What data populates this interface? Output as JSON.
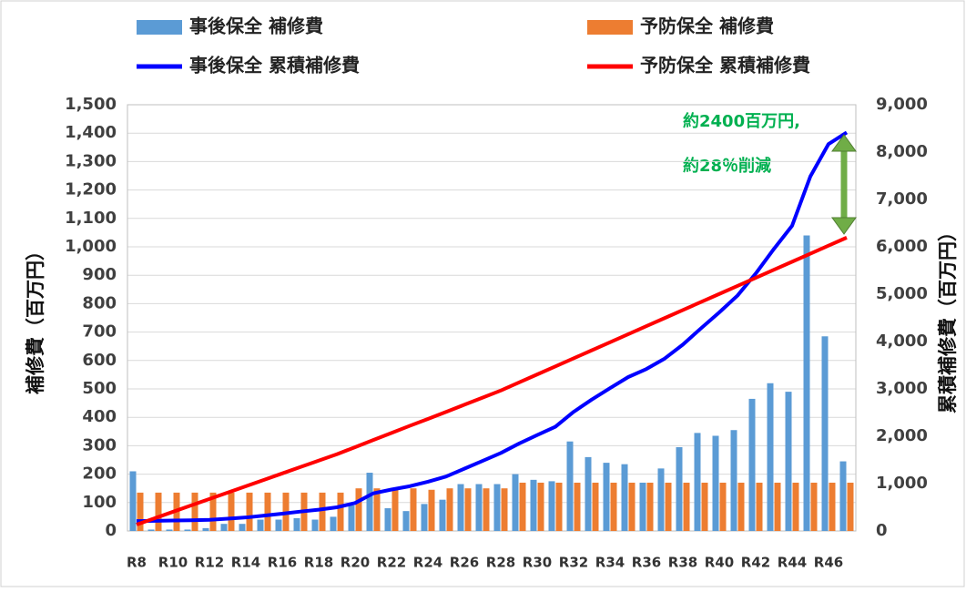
{
  "chart_data": {
    "type": "bar-line",
    "categories": [
      "R8",
      null,
      "R10",
      null,
      "R12",
      null,
      "R14",
      null,
      "R16",
      null,
      "R18",
      null,
      "R20",
      null,
      "R22",
      null,
      "R24",
      null,
      "R26",
      null,
      "R28",
      null,
      "R30",
      null,
      "R32",
      null,
      "R34",
      null,
      "R36",
      null,
      "R38",
      null,
      "R40",
      null,
      "R42",
      null,
      "R44",
      null,
      "R46",
      null
    ],
    "series": [
      {
        "name": "事後保全 補修費",
        "kind": "bar",
        "color": "#5b9bd5",
        "values": [
          210,
          5,
          5,
          5,
          10,
          25,
          25,
          40,
          40,
          45,
          40,
          50,
          90,
          205,
          80,
          70,
          95,
          110,
          165,
          165,
          165,
          200,
          180,
          175,
          315,
          260,
          240,
          235,
          170,
          220,
          295,
          345,
          335,
          355,
          465,
          520,
          490,
          1040,
          685,
          245
        ]
      },
      {
        "name": "予防保全 補修費",
        "kind": "bar",
        "color": "#ed7d31",
        "values": [
          135,
          135,
          135,
          135,
          135,
          135,
          135,
          135,
          135,
          135,
          135,
          135,
          150,
          150,
          150,
          150,
          145,
          150,
          150,
          150,
          150,
          170,
          170,
          170,
          170,
          170,
          170,
          170,
          170,
          170,
          170,
          170,
          170,
          170,
          170,
          170,
          170,
          170,
          170,
          170
        ]
      },
      {
        "name": "事後保全 累積補修費",
        "kind": "line",
        "axis": "y2",
        "color": "#0000ff",
        "values": [
          210,
          215,
          220,
          225,
          235,
          260,
          285,
          325,
          365,
          410,
          450,
          500,
          590,
          795,
          875,
          945,
          1040,
          1150,
          1315,
          1480,
          1645,
          1845,
          2025,
          2200,
          2515,
          2775,
          3015,
          3250,
          3420,
          3640,
          3935,
          4280,
          4615,
          4970,
          5435,
          5955,
          6445,
          7485,
          8170,
          8415
        ]
      },
      {
        "name": "予防保全 累積補修費",
        "kind": "line",
        "axis": "y2",
        "color": "#ff0000",
        "values": [
          135,
          270,
          405,
          540,
          675,
          810,
          945,
          1080,
          1215,
          1350,
          1485,
          1620,
          1770,
          1920,
          2070,
          2220,
          2365,
          2515,
          2665,
          2815,
          2965,
          3135,
          3305,
          3475,
          3645,
          3815,
          3985,
          4155,
          4325,
          4495,
          4665,
          4835,
          5005,
          5175,
          5345,
          5515,
          5685,
          5855,
          6025,
          6195
        ]
      }
    ],
    "y_label": "補修費（百万円）",
    "y2_label": "累積補修費（百万円）",
    "annotations": [
      "約2400百万円,",
      "約28％削減"
    ],
    "ylim": [
      0,
      1500
    ],
    "yticks": [
      0,
      100,
      200,
      300,
      400,
      500,
      600,
      700,
      800,
      900,
      {
        "value": 1000,
        "label": "1,000"
      },
      {
        "value": 1100,
        "label": "1,100"
      },
      {
        "value": 1200,
        "label": "1,200"
      },
      {
        "value": 1300,
        "label": "1,300"
      },
      {
        "value": 1400,
        "label": "1,400"
      },
      {
        "value": 1500,
        "label": "1,500"
      }
    ],
    "y2lim": [
      0,
      9000
    ],
    "y2ticks": [
      0,
      {
        "value": 1000,
        "label": "1,000"
      },
      {
        "value": 2000,
        "label": "2,000"
      },
      {
        "value": 3000,
        "label": "3,000"
      },
      {
        "value": 4000,
        "label": "4,000"
      },
      {
        "value": 5000,
        "label": "5,000"
      },
      {
        "value": 6000,
        "label": "6,000"
      },
      {
        "value": 7000,
        "label": "7,000"
      },
      {
        "value": 8000,
        "label": "8,000"
      },
      {
        "value": 9000,
        "label": "9,000"
      }
    ],
    "grid": true
  }
}
